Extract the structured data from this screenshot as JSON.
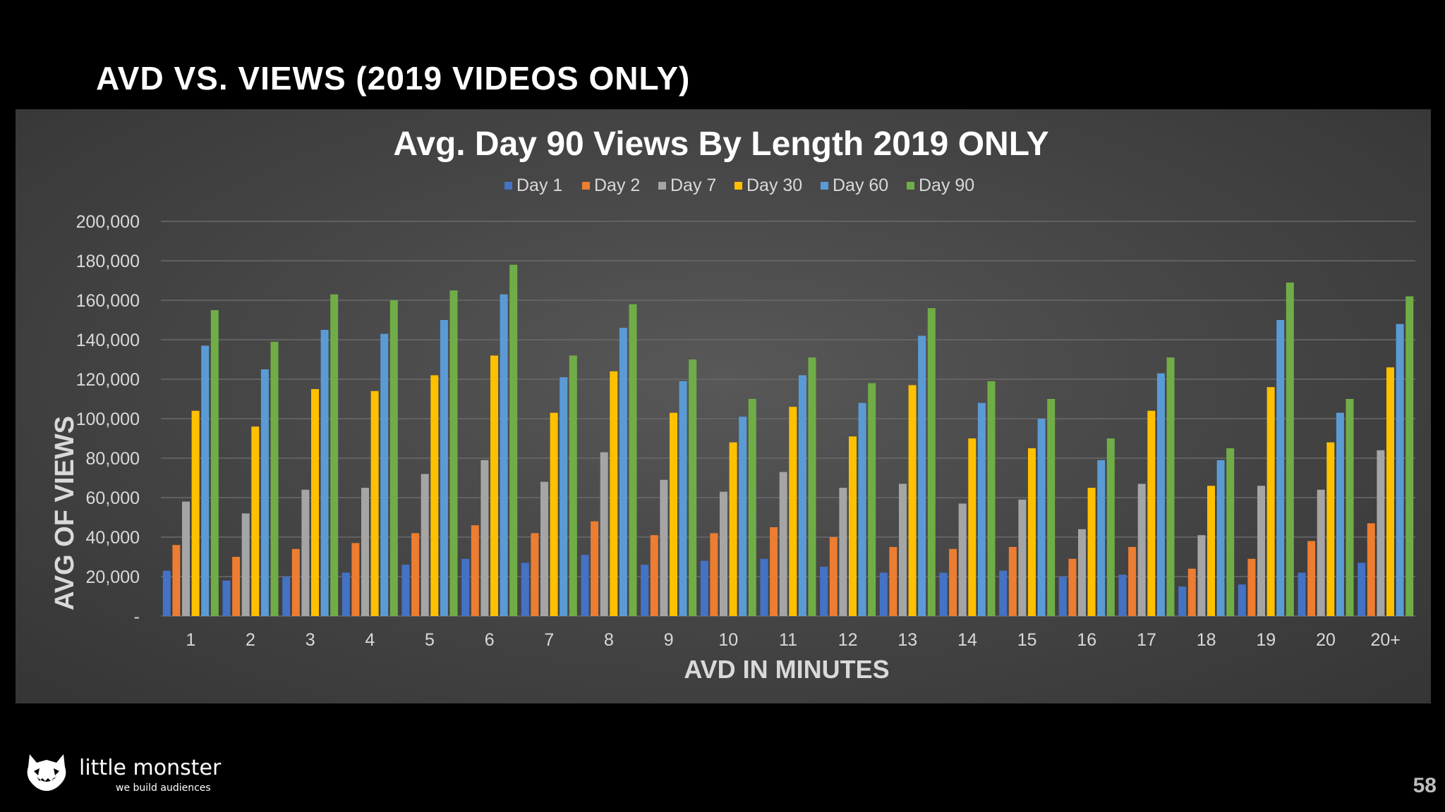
{
  "slide": {
    "title": "AVD VS. VIEWS (2019 VIDEOS ONLY)",
    "page_number": "58"
  },
  "logo": {
    "brand": "little monster",
    "tagline": "we build audiences",
    "icon": "monster-face-icon"
  },
  "colors": {
    "background": "#000000",
    "panel": "#474747",
    "day1": "#4472C4",
    "day2": "#ED7D31",
    "day7": "#A5A5A5",
    "day30": "#FFC000",
    "day60": "#5B9BD5",
    "day90": "#70AD47"
  },
  "chart_data": {
    "type": "bar",
    "title": "Avg. Day 90 Views By Length 2019 ONLY",
    "xlabel": "AVD IN MINUTES",
    "ylabel": "AVG OF VIEWS",
    "ylim": [
      0,
      200000
    ],
    "yticks": [
      {
        "value": 0,
        "label": "-"
      },
      {
        "value": 20000,
        "label": "20,000"
      },
      {
        "value": 40000,
        "label": "40,000"
      },
      {
        "value": 60000,
        "label": "60,000"
      },
      {
        "value": 80000,
        "label": "80,000"
      },
      {
        "value": 100000,
        "label": "100,000"
      },
      {
        "value": 120000,
        "label": "120,000"
      },
      {
        "value": 140000,
        "label": "140,000"
      },
      {
        "value": 160000,
        "label": "160,000"
      },
      {
        "value": 180000,
        "label": "180,000"
      },
      {
        "value": 200000,
        "label": "200,000"
      }
    ],
    "grid": true,
    "legend": "top-center",
    "categories": [
      "1",
      "2",
      "3",
      "4",
      "5",
      "6",
      "7",
      "8",
      "9",
      "10",
      "11",
      "12",
      "13",
      "14",
      "15",
      "16",
      "17",
      "18",
      "19",
      "20",
      "20+"
    ],
    "series": [
      {
        "name": "Day 1",
        "color": "#4472C4",
        "values": [
          23000,
          18000,
          20000,
          22000,
          26000,
          29000,
          27000,
          31000,
          26000,
          28000,
          29000,
          25000,
          22000,
          22000,
          23000,
          20000,
          21000,
          15000,
          16000,
          22000,
          27000
        ]
      },
      {
        "name": "Day 2",
        "color": "#ED7D31",
        "values": [
          36000,
          30000,
          34000,
          37000,
          42000,
          46000,
          42000,
          48000,
          41000,
          42000,
          45000,
          40000,
          35000,
          34000,
          35000,
          29000,
          35000,
          24000,
          29000,
          38000,
          47000
        ]
      },
      {
        "name": "Day 7",
        "color": "#A5A5A5",
        "values": [
          58000,
          52000,
          64000,
          65000,
          72000,
          79000,
          68000,
          83000,
          69000,
          63000,
          73000,
          65000,
          67000,
          57000,
          59000,
          44000,
          67000,
          41000,
          66000,
          64000,
          84000
        ]
      },
      {
        "name": "Day 30",
        "color": "#FFC000",
        "values": [
          104000,
          96000,
          115000,
          114000,
          122000,
          132000,
          103000,
          124000,
          103000,
          88000,
          106000,
          91000,
          117000,
          90000,
          85000,
          65000,
          104000,
          66000,
          116000,
          88000,
          126000
        ]
      },
      {
        "name": "Day 60",
        "color": "#5B9BD5",
        "values": [
          137000,
          125000,
          145000,
          143000,
          150000,
          163000,
          121000,
          146000,
          119000,
          101000,
          122000,
          108000,
          142000,
          108000,
          100000,
          79000,
          123000,
          79000,
          150000,
          103000,
          148000
        ]
      },
      {
        "name": "Day 90",
        "color": "#70AD47",
        "values": [
          155000,
          139000,
          163000,
          160000,
          165000,
          178000,
          132000,
          158000,
          130000,
          110000,
          131000,
          118000,
          156000,
          119000,
          110000,
          90000,
          131000,
          85000,
          169000,
          110000,
          162000
        ]
      }
    ]
  }
}
